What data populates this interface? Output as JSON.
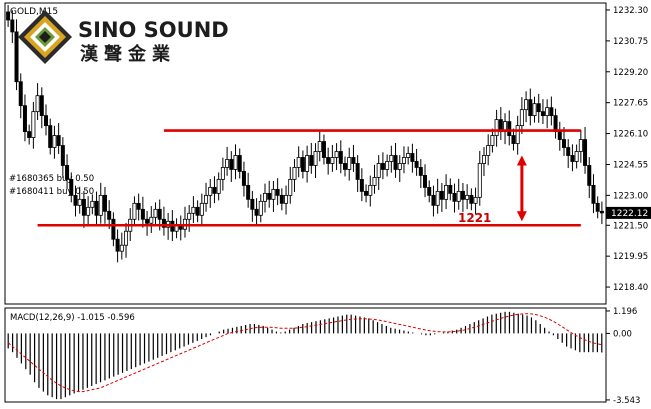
{
  "chart_data": [
    {
      "type": "candlestick",
      "symbol_label": "GOLD,M15",
      "ylim": [
        1217.6,
        1232.6
      ],
      "y_ticks": [
        "1232.30",
        "1230.75",
        "1229.20",
        "1227.65",
        "1226.10",
        "1224.55",
        "1223.00",
        "1221.50",
        "1219.95",
        "1218.40"
      ],
      "y_tick_values": [
        1232.3,
        1230.75,
        1229.2,
        1227.65,
        1226.1,
        1224.55,
        1223.0,
        1221.5,
        1219.95,
        1218.4
      ],
      "current_price_label": "1222.12",
      "current_price": 1222.12,
      "bar_count": 136,
      "closes": [
        1231.8,
        1231.2,
        1228.7,
        1227.5,
        1226.2,
        1225.9,
        1227.2,
        1228.0,
        1227.0,
        1226.5,
        1225.4,
        1226.0,
        1225.5,
        1224.5,
        1223.8,
        1223.0,
        1222.5,
        1222.8,
        1222.0,
        1222.4,
        1222.7,
        1222.0,
        1223.0,
        1222.2,
        1221.8,
        1220.8,
        1220.2,
        1220.5,
        1221.2,
        1221.8,
        1222.6,
        1222.3,
        1221.8,
        1221.6,
        1221.9,
        1222.3,
        1221.8,
        1221.4,
        1221.7,
        1221.2,
        1221.5,
        1221.3,
        1221.8,
        1222.1,
        1222.4,
        1222.0,
        1222.6,
        1223.0,
        1223.4,
        1223.1,
        1223.8,
        1224.4,
        1224.8,
        1224.3,
        1225.0,
        1224.2,
        1223.5,
        1222.8,
        1222.3,
        1222.0,
        1222.7,
        1223.1,
        1222.8,
        1223.3,
        1223.0,
        1222.6,
        1223.0,
        1223.8,
        1224.4,
        1224.9,
        1224.2,
        1225.0,
        1224.5,
        1225.2,
        1225.7,
        1224.9,
        1224.6,
        1224.9,
        1225.2,
        1224.6,
        1224.3,
        1224.9,
        1224.6,
        1223.8,
        1223.2,
        1223.0,
        1223.5,
        1223.9,
        1224.6,
        1224.3,
        1224.7,
        1225.0,
        1224.3,
        1224.6,
        1224.9,
        1225.1,
        1224.7,
        1224.4,
        1224.0,
        1223.4,
        1223.0,
        1222.5,
        1223.2,
        1222.8,
        1223.5,
        1223.1,
        1222.7,
        1223.2,
        1222.8,
        1223.0,
        1222.6,
        1222.9,
        1224.6,
        1225.0,
        1225.5,
        1226.0,
        1226.8,
        1226.2,
        1226.7,
        1226.0,
        1225.6,
        1226.5,
        1227.3,
        1227.8,
        1227.0,
        1227.6,
        1227.2,
        1227.0,
        1227.4,
        1227.0,
        1226.2,
        1225.8,
        1225.4,
        1225.0,
        1224.7,
        1225.2,
        1225.8,
        1224.5,
        1223.5,
        1222.6,
        1222.2,
        1222.12
      ],
      "lines": [
        {
          "name": "resistance",
          "from": [
            37,
            1226.25
          ],
          "to": [
            136,
            1226.25
          ]
        },
        {
          "name": "support",
          "from": [
            7,
            1221.5
          ],
          "to": [
            136,
            1221.5
          ]
        },
        {
          "name": "arrow",
          "from": [
            122,
            1224.9
          ],
          "to": [
            122,
            1221.8
          ]
        }
      ],
      "annotation": "1221",
      "orders": [
        "#1680365 buy 0.50",
        "#1680411 buy 0.50"
      ],
      "logo": {
        "name": "SINO SOUND",
        "chinese": "漢聲金業",
        "colors": [
          "#2b2b2b",
          "#d9a521",
          "#6c9a3b",
          "#1d1d1d"
        ]
      },
      "colors": {
        "bull": "#000000",
        "bear": "#000000",
        "line": "#e00000",
        "text": "#cc0000",
        "axis": "#000000"
      }
    },
    {
      "type": "macd_histogram",
      "label": "MACD(12,26,9) -1.015 -0.596",
      "ylim": [
        -3.6,
        1.3
      ],
      "y_ticks": [
        "1.196",
        "0.00",
        "-3.543"
      ],
      "y_tick_values": [
        1.196,
        0.0,
        -3.543
      ],
      "hist": [
        -0.8,
        -1.0,
        -1.3,
        -1.6,
        -1.9,
        -2.2,
        -2.6,
        -2.9,
        -3.1,
        -3.3,
        -3.4,
        -3.5,
        -3.5,
        -3.4,
        -3.3,
        -3.2,
        -3.1,
        -3.0,
        -2.9,
        -2.8,
        -2.7,
        -2.6,
        -2.5,
        -2.4,
        -2.3,
        -2.2,
        -2.1,
        -2.0,
        -1.9,
        -1.8,
        -1.7,
        -1.6,
        -1.5,
        -1.4,
        -1.3,
        -1.2,
        -1.1,
        -1.0,
        -0.9,
        -0.8,
        -0.7,
        -0.6,
        -0.5,
        -0.4,
        -0.3,
        -0.2,
        -0.1,
        0.0,
        0.1,
        0.2,
        0.25,
        0.3,
        0.35,
        0.4,
        0.45,
        0.5,
        0.5,
        0.45,
        0.4,
        0.3,
        0.2,
        0.1,
        0.05,
        0.1,
        0.2,
        0.3,
        0.4,
        0.5,
        0.55,
        0.6,
        0.65,
        0.7,
        0.75,
        0.8,
        0.85,
        0.9,
        0.95,
        1.0,
        1.0,
        0.95,
        0.9,
        0.85,
        0.8,
        0.7,
        0.6,
        0.5,
        0.4,
        0.3,
        0.25,
        0.2,
        0.15,
        0.1,
        0.05,
        0.0,
        -0.05,
        -0.1,
        -0.1,
        -0.05,
        0.0,
        0.05,
        0.1,
        0.15,
        0.2,
        0.3,
        0.4,
        0.5,
        0.6,
        0.7,
        0.8,
        0.9,
        1.0,
        1.05,
        1.1,
        1.15,
        1.15,
        1.1,
        1.05,
        1.0,
        0.95,
        0.85,
        0.7,
        0.5,
        0.3,
        0.1,
        -0.1,
        -0.3,
        -0.5,
        -0.7,
        -0.8,
        -0.9,
        -1.0,
        -1.0,
        -1.0,
        -1.0,
        -1.0,
        -1.015
      ],
      "signal": [
        -0.5,
        -0.7,
        -0.9,
        -1.1,
        -1.3,
        -1.5,
        -1.7,
        -1.9,
        -2.1,
        -2.3,
        -2.5,
        -2.65,
        -2.8,
        -2.9,
        -3.0,
        -3.05,
        -3.1,
        -3.1,
        -3.05,
        -3.0,
        -2.95,
        -2.9,
        -2.8,
        -2.7,
        -2.6,
        -2.5,
        -2.4,
        -2.3,
        -2.2,
        -2.1,
        -2.0,
        -1.9,
        -1.8,
        -1.7,
        -1.6,
        -1.5,
        -1.4,
        -1.3,
        -1.2,
        -1.1,
        -1.0,
        -0.9,
        -0.8,
        -0.7,
        -0.6,
        -0.5,
        -0.4,
        -0.3,
        -0.2,
        -0.1,
        0.0,
        0.05,
        0.1,
        0.15,
        0.2,
        0.25,
        0.3,
        0.32,
        0.33,
        0.33,
        0.32,
        0.3,
        0.28,
        0.27,
        0.27,
        0.28,
        0.3,
        0.33,
        0.36,
        0.4,
        0.44,
        0.48,
        0.52,
        0.56,
        0.6,
        0.64,
        0.68,
        0.72,
        0.75,
        0.77,
        0.78,
        0.78,
        0.77,
        0.75,
        0.72,
        0.68,
        0.63,
        0.58,
        0.53,
        0.48,
        0.43,
        0.38,
        0.33,
        0.28,
        0.23,
        0.18,
        0.14,
        0.11,
        0.09,
        0.08,
        0.08,
        0.09,
        0.11,
        0.15,
        0.2,
        0.26,
        0.33,
        0.4,
        0.48,
        0.56,
        0.64,
        0.72,
        0.8,
        0.87,
        0.93,
        0.98,
        1.02,
        1.04,
        1.05,
        1.04,
        1.0,
        0.94,
        0.86,
        0.76,
        0.64,
        0.5,
        0.35,
        0.2,
        0.05,
        -0.1,
        -0.22,
        -0.33,
        -0.42,
        -0.5,
        -0.56,
        -0.596
      ]
    }
  ]
}
